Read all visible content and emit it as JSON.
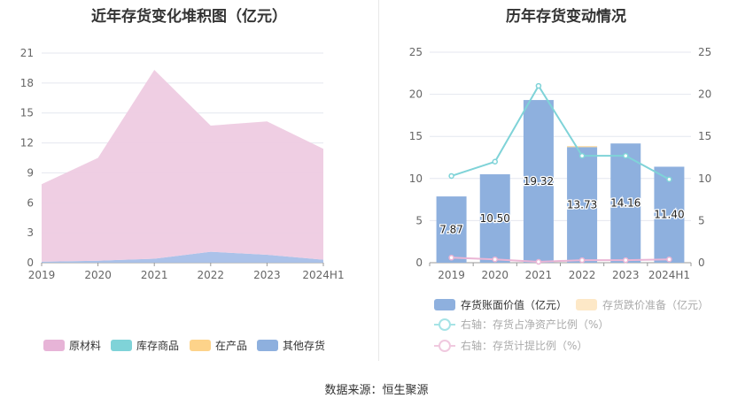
{
  "left_title": "近年存货变化堆积图（亿元）",
  "right_title": "历年存货变动情况",
  "source_label": "数据来源：",
  "source_value": "恒生聚源",
  "chart_data": [
    {
      "type": "area",
      "stacked": true,
      "title": "近年存货变化堆积图（亿元）",
      "categories": [
        "2019",
        "2020",
        "2021",
        "2022",
        "2023",
        "2024H1"
      ],
      "ylim": [
        0,
        21
      ],
      "yticks": [
        0,
        3,
        6,
        9,
        12,
        15,
        18,
        21
      ],
      "grid": true,
      "legend_position": "bottom",
      "series": [
        {
          "name": "其他存货",
          "values": [
            0.1,
            0.2,
            0.4,
            1.1,
            0.8,
            0.3
          ],
          "color": "#a7bfe8"
        },
        {
          "name": "在产品",
          "values": [
            0,
            0,
            0,
            0,
            0,
            0
          ],
          "color": "#fdd38a"
        },
        {
          "name": "库存商品",
          "values": [
            0,
            0,
            0,
            0,
            0,
            0
          ],
          "color": "#7fd3d8"
        },
        {
          "name": "原材料",
          "values": [
            7.77,
            10.3,
            18.92,
            12.63,
            13.36,
            11.1
          ],
          "color": "#eecbe2"
        }
      ],
      "legend_order": [
        "原材料",
        "库存商品",
        "在产品",
        "其他存货"
      ],
      "legend_colors": [
        "#e7b4d7",
        "#7fd3d8",
        "#fdd38a",
        "#8eb0de"
      ]
    },
    {
      "type": "bar",
      "title": "历年存货变动情况",
      "categories": [
        "2019",
        "2020",
        "2021",
        "2022",
        "2023",
        "2024H1"
      ],
      "ylim": [
        0,
        25
      ],
      "yticks": [
        0,
        5,
        10,
        15,
        20,
        25
      ],
      "y2lim": [
        0,
        25
      ],
      "y2ticks": [
        0,
        5,
        10,
        15,
        20,
        25
      ],
      "grid": true,
      "legend_position": "bottom",
      "series": [
        {
          "name": "存货账面价值（亿元）",
          "kind": "bar",
          "axis": "left",
          "values": [
            7.87,
            10.5,
            19.32,
            13.73,
            14.16,
            11.4
          ],
          "labels": [
            "7.87",
            "10.50",
            "19.32",
            "13.73",
            "14.16",
            "11.40"
          ],
          "color": "#8eb0de"
        },
        {
          "name": "存货跌价准备（亿元）",
          "kind": "bar",
          "axis": "left",
          "values": [
            0,
            0,
            0,
            0.1,
            0,
            0
          ],
          "color": "#fdd38a"
        },
        {
          "name": "右轴：存货占净资产比例（%）",
          "kind": "line",
          "axis": "right",
          "values": [
            10.3,
            12.0,
            21.0,
            12.7,
            12.7,
            9.9
          ],
          "color": "#7fd3d8"
        },
        {
          "name": "右轴：存货计提比例（%）",
          "kind": "line",
          "axis": "right",
          "values": [
            0.6,
            0.4,
            0.1,
            0.3,
            0.3,
            0.4
          ],
          "color": "#eab5d5"
        }
      ],
      "legend_colors": [
        "#8eb0de",
        "#fde8c7",
        "#a6e3e6",
        "#f0c9df"
      ]
    }
  ]
}
